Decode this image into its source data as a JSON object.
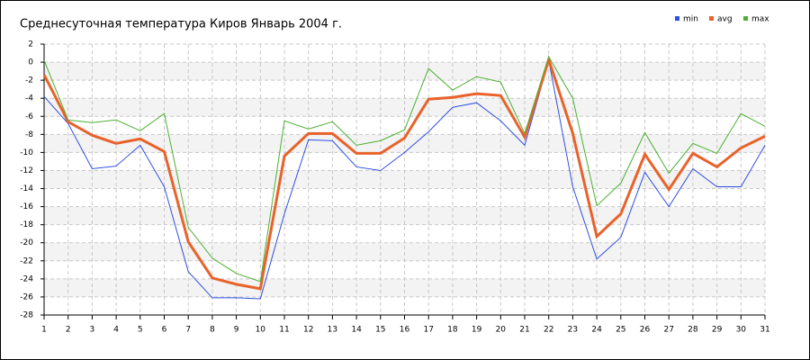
{
  "chart_data": {
    "type": "line",
    "title": "Среднесуточная температура Киров  Январь 2004 г.",
    "x": [
      1,
      2,
      3,
      4,
      5,
      6,
      7,
      8,
      9,
      10,
      11,
      12,
      13,
      14,
      15,
      16,
      17,
      18,
      19,
      20,
      21,
      22,
      23,
      24,
      25,
      26,
      27,
      28,
      29,
      30,
      31
    ],
    "xlim": [
      1,
      31
    ],
    "xticks": [
      1,
      2,
      3,
      4,
      5,
      6,
      7,
      8,
      9,
      10,
      11,
      12,
      13,
      14,
      15,
      16,
      17,
      18,
      19,
      20,
      21,
      22,
      23,
      24,
      25,
      26,
      27,
      28,
      29,
      30,
      31
    ],
    "ylim": [
      -28,
      2
    ],
    "yticks": [
      -28,
      -26,
      -24,
      -22,
      -20,
      -18,
      -16,
      -14,
      -12,
      -10,
      -8,
      -6,
      -4,
      -2,
      0,
      2
    ],
    "grid": true,
    "legend": "top-right",
    "series": [
      {
        "name": "min",
        "color": "#2f4fe0",
        "values": [
          -3.8,
          -6.8,
          -11.8,
          -11.5,
          -9.2,
          -13.8,
          -23.2,
          -26.1,
          -26.1,
          -26.2,
          -16.8,
          -8.6,
          -8.7,
          -11.6,
          -12,
          -10,
          -7.7,
          -5,
          -4.5,
          -6.5,
          -9.2,
          0.2,
          -13.8,
          -21.8,
          -19.4,
          -12.2,
          -16,
          -11.8,
          -13.8,
          -13.8,
          -9.2
        ]
      },
      {
        "name": "avg",
        "color": "#e8622a",
        "values": [
          -1.4,
          -6.6,
          -8.1,
          -9,
          -8.5,
          -9.9,
          -19.9,
          -23.9,
          -24.6,
          -25.1,
          -10.4,
          -7.9,
          -7.9,
          -10.1,
          -10.1,
          -8.4,
          -4.1,
          -3.9,
          -3.5,
          -3.7,
          -8.3,
          0.3,
          -7.9,
          -19.3,
          -16.8,
          -10.2,
          -14.1,
          -10.1,
          -11.6,
          -9.5,
          -8.2
        ]
      },
      {
        "name": "max",
        "color": "#4cb030",
        "values": [
          0.2,
          -6.4,
          -6.7,
          -6.4,
          -7.6,
          -5.7,
          -18.3,
          -21.7,
          -23.4,
          -24.3,
          -6.5,
          -7.4,
          -6.6,
          -9.2,
          -8.7,
          -7.5,
          -0.7,
          -3.1,
          -1.6,
          -2.2,
          -7.9,
          0.6,
          -4,
          -15.9,
          -13.4,
          -7.8,
          -12.3,
          -9,
          -10.1,
          -5.7,
          -7.1
        ]
      }
    ]
  }
}
